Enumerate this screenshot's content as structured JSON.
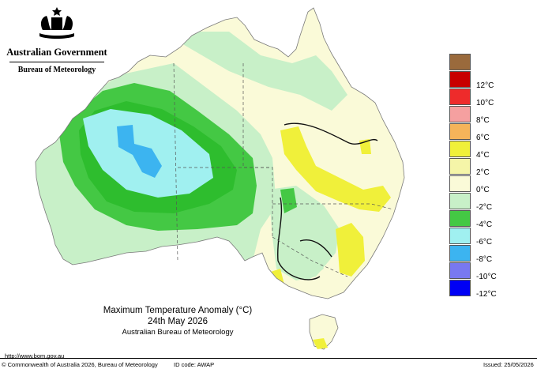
{
  "header": {
    "government": "Australian Government",
    "agency": "Bureau of Meteorology"
  },
  "map": {
    "title_line1": "Maximum Temperature Anomaly (°C)",
    "title_line2": "24th May 2026",
    "title_line3": "Australian Bureau of Meteorology"
  },
  "legend": {
    "items": [
      {
        "label": "",
        "color": "#9a6a3c"
      },
      {
        "label": "12°C",
        "color": "#c80000"
      },
      {
        "label": "10°C",
        "color": "#ee2b2b"
      },
      {
        "label": "8°C",
        "color": "#f5a0a0"
      },
      {
        "label": "6°C",
        "color": "#f5b45a"
      },
      {
        "label": "4°C",
        "color": "#f0f03a"
      },
      {
        "label": "2°C",
        "color": "#f5f5a8"
      },
      {
        "label": "0°C",
        "color": "#fafad8"
      },
      {
        "label": "-2°C",
        "color": "#c8f0c8"
      },
      {
        "label": "-4°C",
        "color": "#44c844"
      },
      {
        "label": "-6°C",
        "color": "#a0f0f0"
      },
      {
        "label": "-8°C",
        "color": "#3cb4f0"
      },
      {
        "label": "-10°C",
        "color": "#7878f0"
      },
      {
        "label": "-12°C",
        "color": "#0000f5"
      }
    ]
  },
  "footer": {
    "url": "http://www.bom.gov.au",
    "copyright": "© Commonwealth of Australia 2026, Bureau of Meteorology",
    "id_code": "ID code: AWAP",
    "issued": "Issued: 25/05/2026"
  }
}
